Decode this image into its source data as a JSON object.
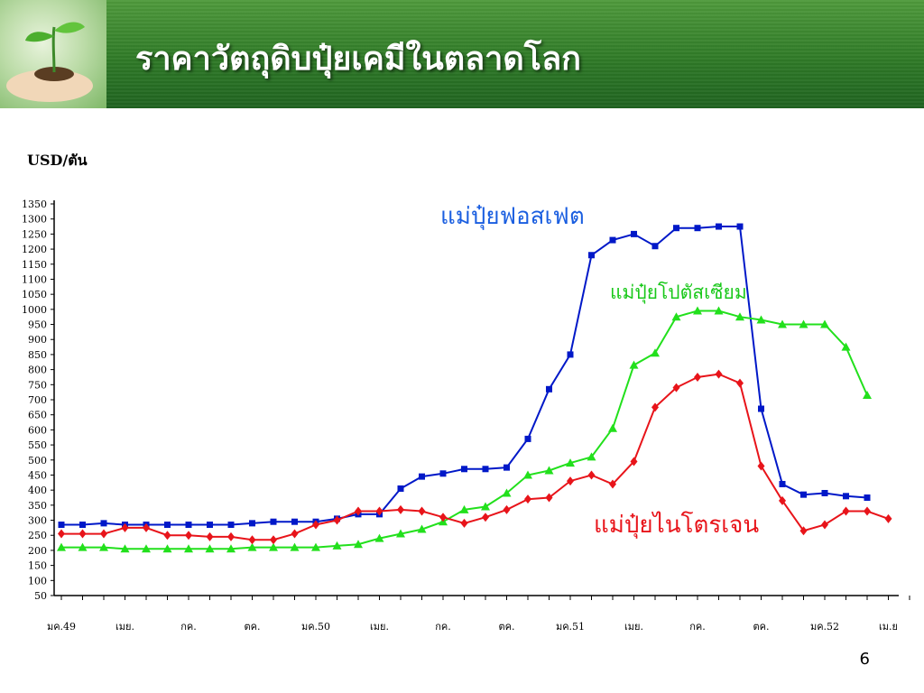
{
  "header": {
    "title": "ราคาวัตถุดิบปุ๋ยเคมีในตลาดโลก"
  },
  "page": {
    "number": "6"
  },
  "chart_data": {
    "type": "line",
    "ylabel": "USD/ตัน",
    "ylim": [
      50,
      1350
    ],
    "yticks": [
      50,
      100,
      150,
      200,
      250,
      300,
      350,
      400,
      450,
      500,
      550,
      600,
      650,
      700,
      750,
      800,
      850,
      900,
      950,
      1000,
      1050,
      1100,
      1150,
      1200,
      1250,
      1300,
      1350
    ],
    "x_tick_labels": [
      "มค.49",
      "เมย.",
      "กค.",
      "ตค.",
      "มค.50",
      "เมย.",
      "กค.",
      "ตค.",
      "มค.51",
      "เมย.",
      "กค.",
      "ตค.",
      "มค.52",
      "เม.ย"
    ],
    "x_count": 41,
    "series": [
      {
        "name": "แม่ปุ๋ยฟอสเฟต",
        "color": "#0018c8",
        "marker": "square",
        "values": [
          285,
          285,
          290,
          285,
          285,
          285,
          285,
          285,
          285,
          290,
          295,
          295,
          295,
          305,
          320,
          320,
          405,
          445,
          455,
          470,
          470,
          475,
          570,
          735,
          850,
          1180,
          1230,
          1250,
          1210,
          1270,
          1270,
          1275,
          1275,
          670,
          420,
          385,
          390,
          380,
          375
        ]
      },
      {
        "name": "แม่ปุ๋ยโปตัสเซียม",
        "color": "#22e01c",
        "marker": "triangle",
        "values": [
          210,
          210,
          210,
          205,
          205,
          205,
          205,
          205,
          205,
          210,
          210,
          210,
          210,
          215,
          220,
          240,
          255,
          270,
          295,
          335,
          345,
          390,
          450,
          465,
          490,
          510,
          605,
          815,
          855,
          975,
          995,
          995,
          975,
          965,
          950,
          950,
          950,
          875,
          715
        ]
      },
      {
        "name": "แม่ปุ๋ยไนโตรเจน",
        "color": "#e8141a",
        "marker": "diamond",
        "values": [
          255,
          255,
          255,
          275,
          275,
          250,
          250,
          245,
          245,
          235,
          235,
          255,
          285,
          300,
          330,
          330,
          335,
          330,
          310,
          290,
          310,
          335,
          370,
          375,
          430,
          450,
          420,
          495,
          675,
          740,
          775,
          785,
          755,
          480,
          365,
          265,
          285,
          330,
          330,
          305
        ]
      }
    ]
  }
}
